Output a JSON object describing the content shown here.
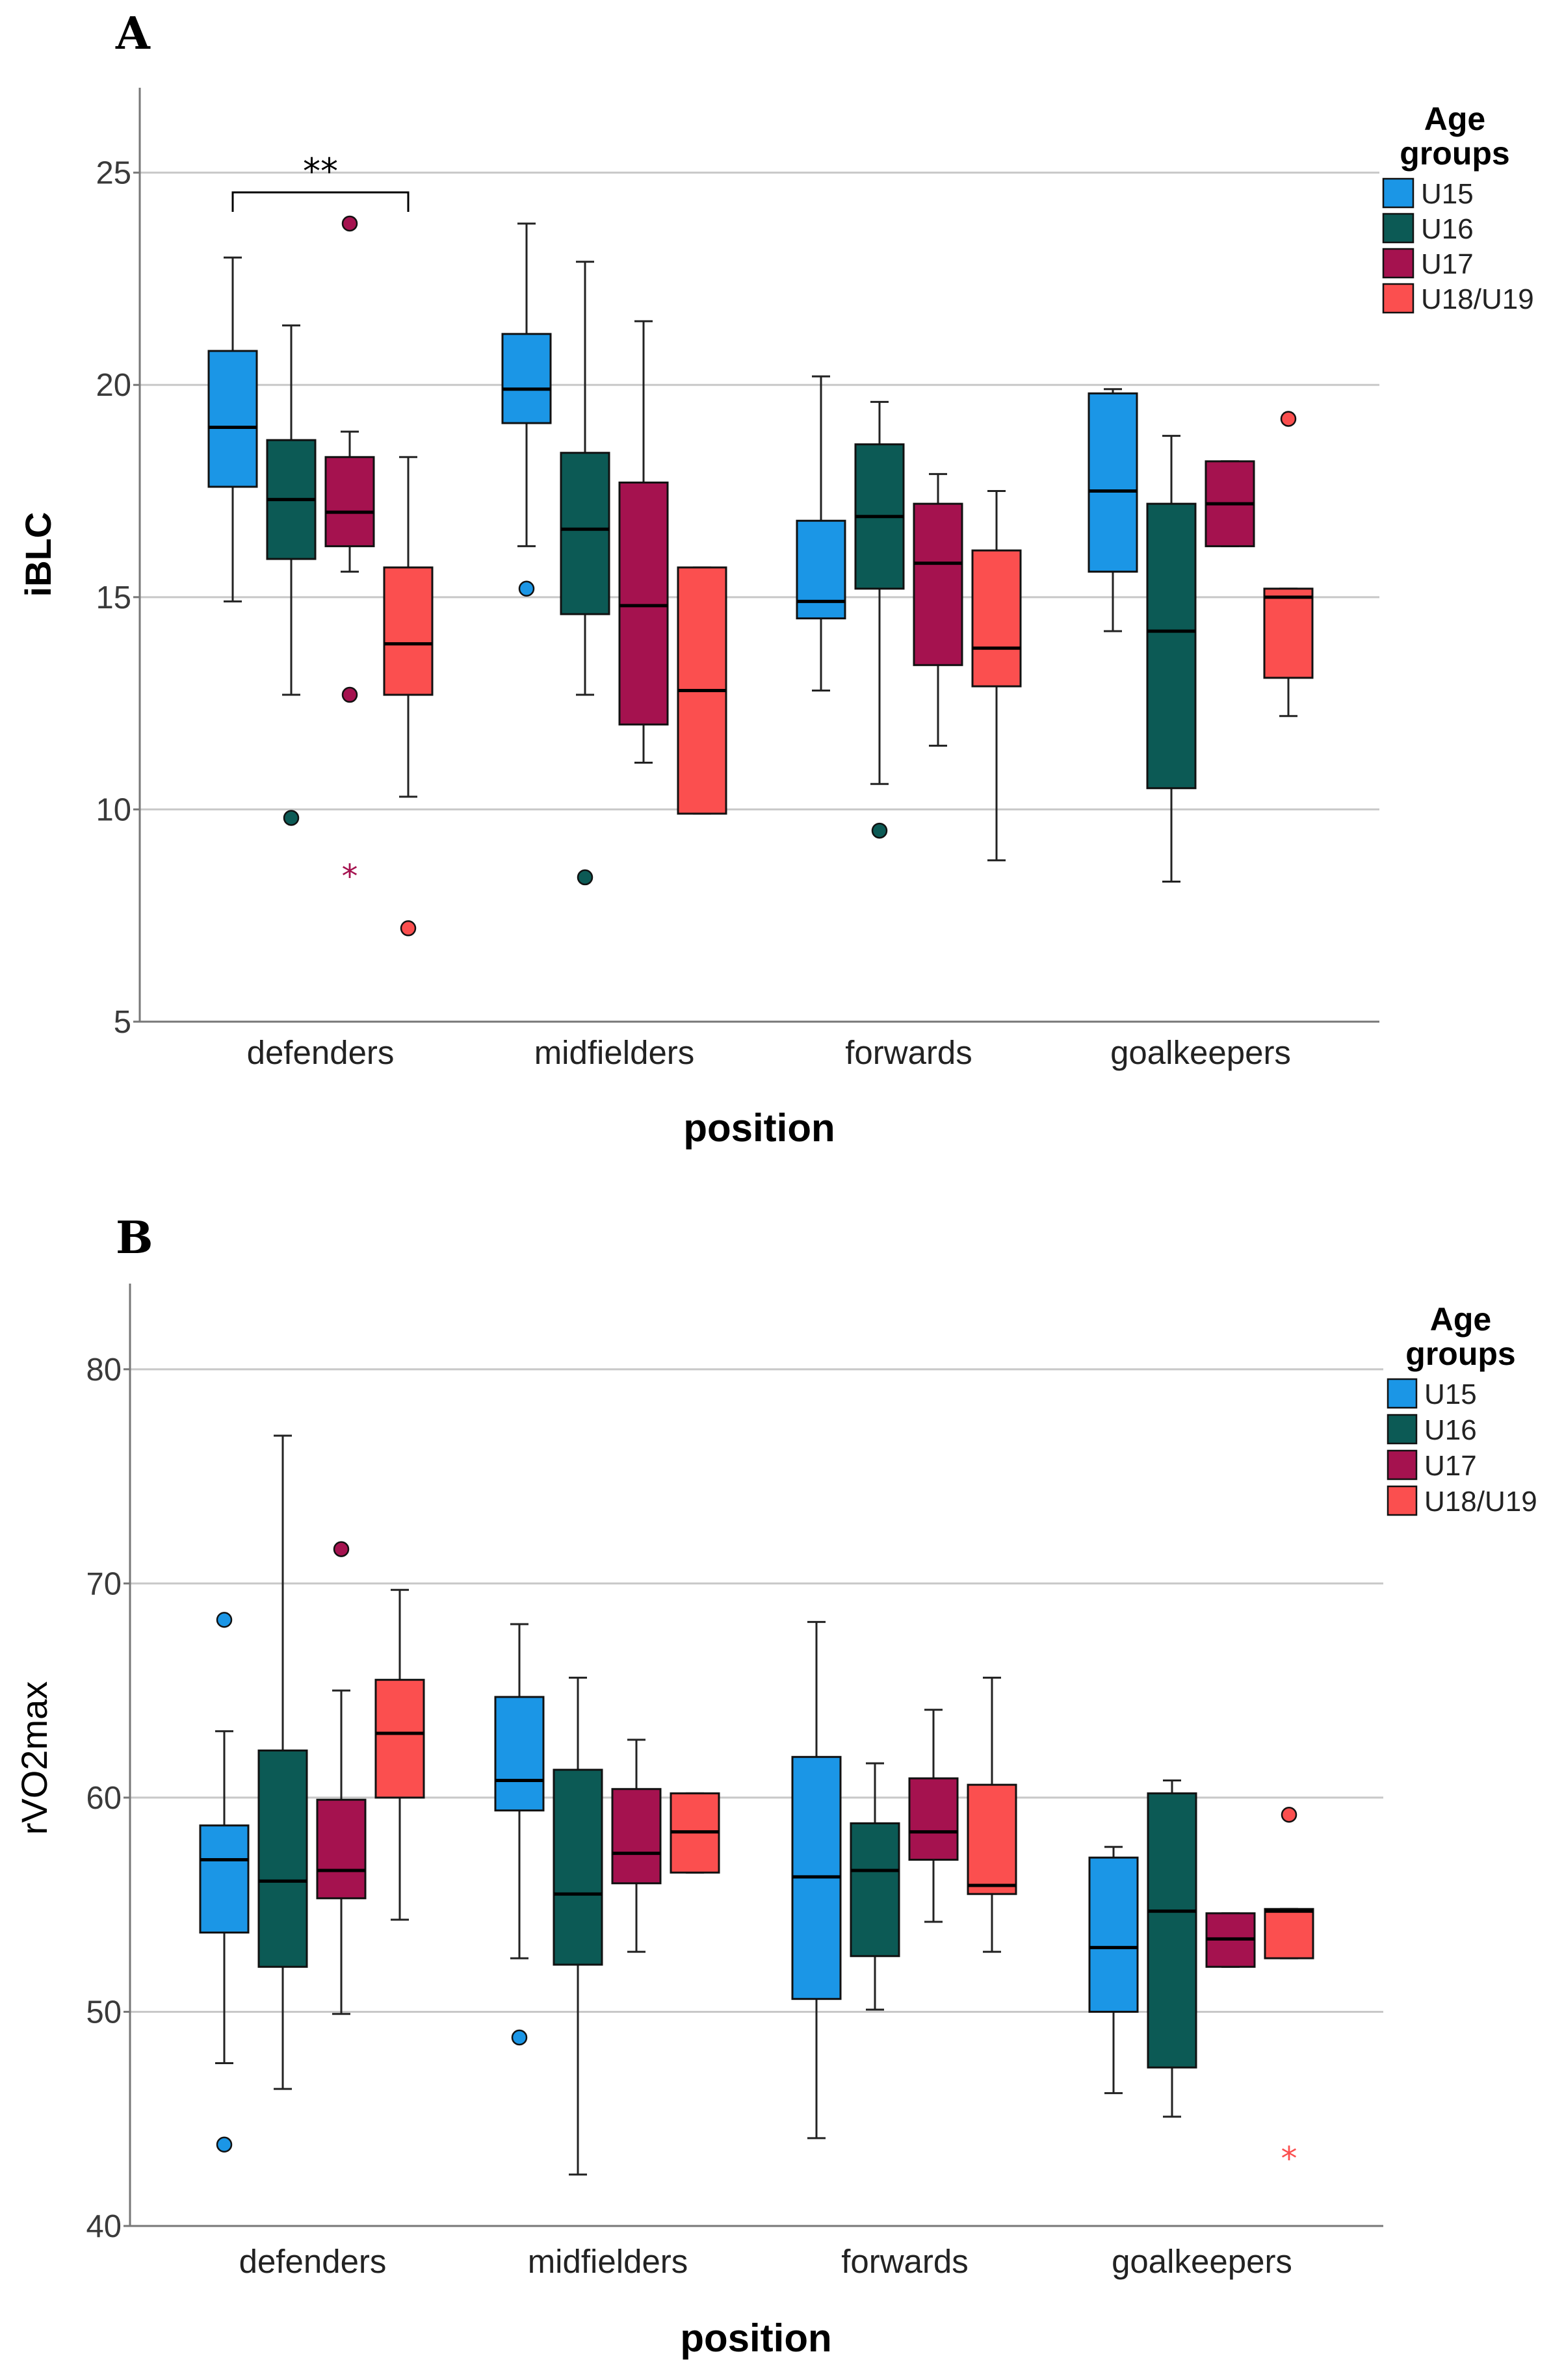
{
  "chart_data": [
    {
      "panel": "A",
      "type": "box",
      "title": "",
      "xlabel": "position",
      "ylabel": "iBLC",
      "ylim": [
        5,
        27
      ],
      "yticks": [
        5,
        10,
        15,
        20,
        25
      ],
      "grid": true,
      "categories": [
        "defenders",
        "midfielders",
        "forwards",
        "goalkeepers"
      ],
      "legend": {
        "title_line1": "Age",
        "title_line2": "groups",
        "position": "top-right"
      },
      "series": [
        {
          "name": "U15",
          "color": "#1b96e6",
          "boxes": [
            {
              "min": 14.9,
              "q1": 17.6,
              "median": 19.0,
              "q3": 20.8,
              "max": 23.0,
              "outliers": [],
              "extremes": []
            },
            {
              "min": 16.2,
              "q1": 19.1,
              "median": 19.9,
              "q3": 21.2,
              "max": 23.8,
              "outliers": [
                15.2
              ],
              "extremes": []
            },
            {
              "min": 12.8,
              "q1": 14.5,
              "median": 14.9,
              "q3": 16.8,
              "max": 20.2,
              "outliers": [],
              "extremes": []
            },
            {
              "min": 14.2,
              "q1": 15.6,
              "median": 17.5,
              "q3": 19.8,
              "max": 19.9,
              "outliers": [],
              "extremes": []
            }
          ]
        },
        {
          "name": "U16",
          "color": "#0c5a55",
          "boxes": [
            {
              "min": 12.7,
              "q1": 15.9,
              "median": 17.3,
              "q3": 18.7,
              "max": 21.4,
              "outliers": [
                9.8
              ],
              "extremes": []
            },
            {
              "min": 12.7,
              "q1": 14.6,
              "median": 16.6,
              "q3": 18.4,
              "max": 22.9,
              "outliers": [
                8.4
              ],
              "extremes": []
            },
            {
              "min": 10.6,
              "q1": 15.2,
              "median": 16.9,
              "q3": 18.6,
              "max": 19.6,
              "outliers": [
                9.5
              ],
              "extremes": []
            },
            {
              "min": 8.3,
              "q1": 10.5,
              "median": 14.2,
              "q3": 17.2,
              "max": 18.8,
              "outliers": [],
              "extremes": []
            }
          ]
        },
        {
          "name": "U17",
          "color": "#a5124f",
          "boxes": [
            {
              "min": 15.6,
              "q1": 16.2,
              "median": 17.0,
              "q3": 18.3,
              "max": 18.9,
              "outliers": [
                23.8,
                12.7
              ],
              "extremes": [
                8.5
              ]
            },
            {
              "min": 11.1,
              "q1": 12.0,
              "median": 14.8,
              "q3": 17.7,
              "max": 21.5,
              "outliers": [],
              "extremes": []
            },
            {
              "min": 11.5,
              "q1": 13.4,
              "median": 15.8,
              "q3": 17.2,
              "max": 17.9,
              "outliers": [],
              "extremes": []
            },
            {
              "min": 16.2,
              "q1": 16.2,
              "median": 17.2,
              "q3": 18.2,
              "max": 18.2,
              "outliers": [],
              "extremes": []
            }
          ]
        },
        {
          "name": "U18/U19",
          "color": "#fb4f4f",
          "boxes": [
            {
              "min": 10.3,
              "q1": 12.7,
              "median": 13.9,
              "q3": 15.7,
              "max": 18.3,
              "outliers": [
                7.2
              ],
              "extremes": []
            },
            {
              "min": 9.9,
              "q1": 9.9,
              "median": 12.8,
              "q3": 15.7,
              "max": 15.7,
              "outliers": [],
              "extremes": []
            },
            {
              "min": 8.8,
              "q1": 12.9,
              "median": 13.8,
              "q3": 16.1,
              "max": 17.5,
              "outliers": [],
              "extremes": []
            },
            {
              "min": 12.2,
              "q1": 13.1,
              "median": 15.0,
              "q3": 15.2,
              "max": 15.2,
              "outliers": [
                19.2
              ],
              "extremes": []
            }
          ]
        }
      ],
      "annotations": [
        {
          "text": "**",
          "category": "defenders",
          "from_series": "U15",
          "to_series": "U18/U19"
        }
      ]
    },
    {
      "panel": "B",
      "type": "box",
      "title": "",
      "xlabel": "position",
      "ylabel": "rVO2max",
      "ylim": [
        40,
        84
      ],
      "yticks": [
        40,
        50,
        60,
        70,
        80
      ],
      "grid": true,
      "categories": [
        "defenders",
        "midfielders",
        "forwards",
        "goalkeepers"
      ],
      "legend": {
        "title_line1": "Age",
        "title_line2": "groups",
        "position": "top-right"
      },
      "series": [
        {
          "name": "U15",
          "color": "#1b96e6",
          "boxes": [
            {
              "min": 47.6,
              "q1": 53.7,
              "median": 57.1,
              "q3": 58.7,
              "max": 63.1,
              "outliers": [
                68.3,
                43.8
              ],
              "extremes": []
            },
            {
              "min": 52.5,
              "q1": 59.4,
              "median": 60.8,
              "q3": 64.7,
              "max": 68.1,
              "outliers": [
                48.8
              ],
              "extremes": []
            },
            {
              "min": 44.1,
              "q1": 50.6,
              "median": 56.3,
              "q3": 61.9,
              "max": 68.2,
              "outliers": [],
              "extremes": []
            },
            {
              "min": 46.2,
              "q1": 50.0,
              "median": 53.0,
              "q3": 57.2,
              "max": 57.7,
              "outliers": [],
              "extremes": []
            }
          ]
        },
        {
          "name": "U16",
          "color": "#0c5a55",
          "boxes": [
            {
              "min": 46.4,
              "q1": 52.1,
              "median": 56.1,
              "q3": 62.2,
              "max": 76.9,
              "outliers": [],
              "extremes": []
            },
            {
              "min": 42.4,
              "q1": 52.2,
              "median": 55.5,
              "q3": 61.3,
              "max": 65.6,
              "outliers": [],
              "extremes": []
            },
            {
              "min": 50.1,
              "q1": 52.6,
              "median": 56.6,
              "q3": 58.8,
              "max": 61.6,
              "outliers": [],
              "extremes": []
            },
            {
              "min": 45.1,
              "q1": 47.4,
              "median": 54.7,
              "q3": 60.2,
              "max": 60.8,
              "outliers": [],
              "extremes": []
            }
          ]
        },
        {
          "name": "U17",
          "color": "#a5124f",
          "boxes": [
            {
              "min": 49.9,
              "q1": 55.3,
              "median": 56.6,
              "q3": 59.9,
              "max": 65.0,
              "outliers": [
                71.6
              ],
              "extremes": []
            },
            {
              "min": 52.8,
              "q1": 56.0,
              "median": 57.4,
              "q3": 60.4,
              "max": 62.7,
              "outliers": [],
              "extremes": []
            },
            {
              "min": 54.2,
              "q1": 57.1,
              "median": 58.4,
              "q3": 60.9,
              "max": 64.1,
              "outliers": [],
              "extremes": []
            },
            {
              "min": 52.1,
              "q1": 52.1,
              "median": 53.4,
              "q3": 54.6,
              "max": 54.6,
              "outliers": [],
              "extremes": []
            }
          ]
        },
        {
          "name": "U18/U19",
          "color": "#fb4f4f",
          "boxes": [
            {
              "min": 54.3,
              "q1": 60.0,
              "median": 63.0,
              "q3": 65.5,
              "max": 69.7,
              "outliers": [],
              "extremes": []
            },
            {
              "min": 56.5,
              "q1": 56.5,
              "median": 58.4,
              "q3": 60.2,
              "max": 60.2,
              "outliers": [],
              "extremes": []
            },
            {
              "min": 52.8,
              "q1": 55.5,
              "median": 55.9,
              "q3": 60.6,
              "max": 65.6,
              "outliers": [],
              "extremes": []
            },
            {
              "min": 52.5,
              "q1": 52.5,
              "median": 54.7,
              "q3": 54.8,
              "max": 54.8,
              "outliers": [
                59.2
              ],
              "extremes": [
                43.3
              ]
            }
          ]
        }
      ],
      "annotations": []
    }
  ]
}
